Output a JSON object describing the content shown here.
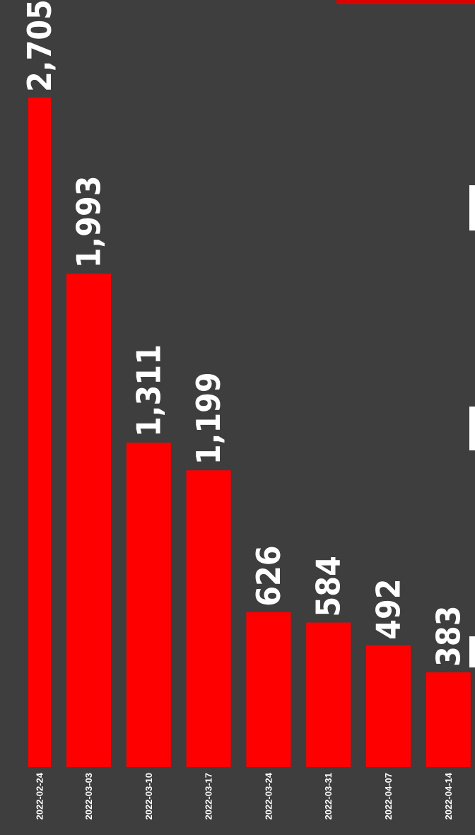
{
  "chart_data": {
    "type": "bar",
    "orientation": "vertical",
    "categories": [
      "2022-02-24",
      "2022-03-03",
      "2022-03-10",
      "2022-03-17",
      "2022-03-24",
      "2022-03-31",
      "2022-04-07",
      "2022-04-14"
    ],
    "values": [
      2705,
      1993,
      1311,
      1199,
      626,
      584,
      492,
      383
    ],
    "value_labels": [
      "2,705",
      "1,993",
      "1,311",
      "1,199",
      "626",
      "584",
      "492",
      "383"
    ],
    "ylim": [
      0,
      2705
    ],
    "grid": false,
    "legend": "none",
    "bar_color": "#ff0000",
    "background_color": "#3e3e3e",
    "text_color": "#ffffff"
  }
}
